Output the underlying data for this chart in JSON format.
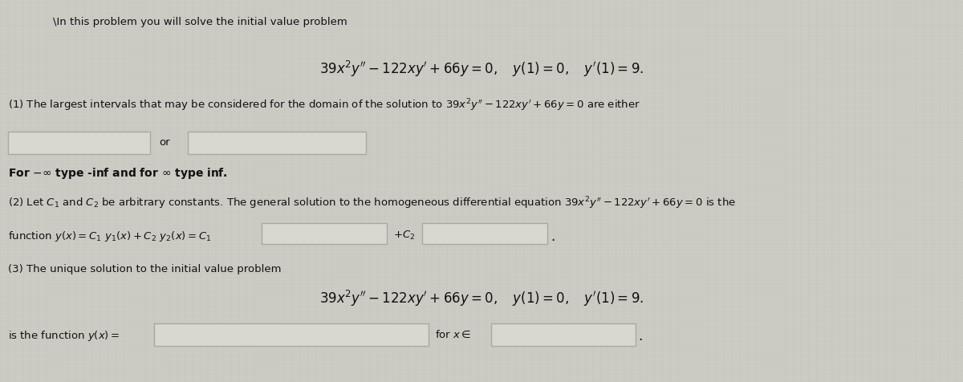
{
  "bg_color": "#cccbc4",
  "panel_color": "#d8d7d0",
  "box_face_color": "#d4d3cc",
  "box_edge_color": "#999990",
  "text_color": "#111111",
  "title_line": "\\In this problem you will solve the initial value problem",
  "eq1": "$39x^2y'' - 122xy' + 66y = 0, \\quad y(1) = 0, \\quad y'(1) = 9.$",
  "part1_prefix": "(1) The largest intervals that may be considered for the domain of the solution to $39x^2y'' - 122xy' + 66y = 0$ are either",
  "part1_or": "or",
  "part1_note_regular": "For ",
  "part1_note_bold": "$-\\infty$ type -inf and for $\\infty$ type inf.",
  "part2_line1": "(2) Let $C_1$ and $C_2$ be arbitrary constants. The general solution to the homogeneous differential equation $39x^2y'' - 122xy' + 66y = 0$ is the",
  "part2_line2_prefix": "function $y(x) = C_1 \\ y_1(x) + C_2 \\ y_2(x) = C_1$",
  "part2_line2_mid": "$+C_2$",
  "part3_line1": "(3) The unique solution to the initial value problem",
  "eq2": "$39x^2y'' - 122xy' + 66y = 0, \\quad y(1) = 0, \\quad y'(1) = 9.$",
  "part3_last_prefix": "is the function $y(x) =$",
  "part3_last_mid": "for $x \\in$",
  "figsize": [
    12.0,
    4.77
  ],
  "dpi": 100
}
